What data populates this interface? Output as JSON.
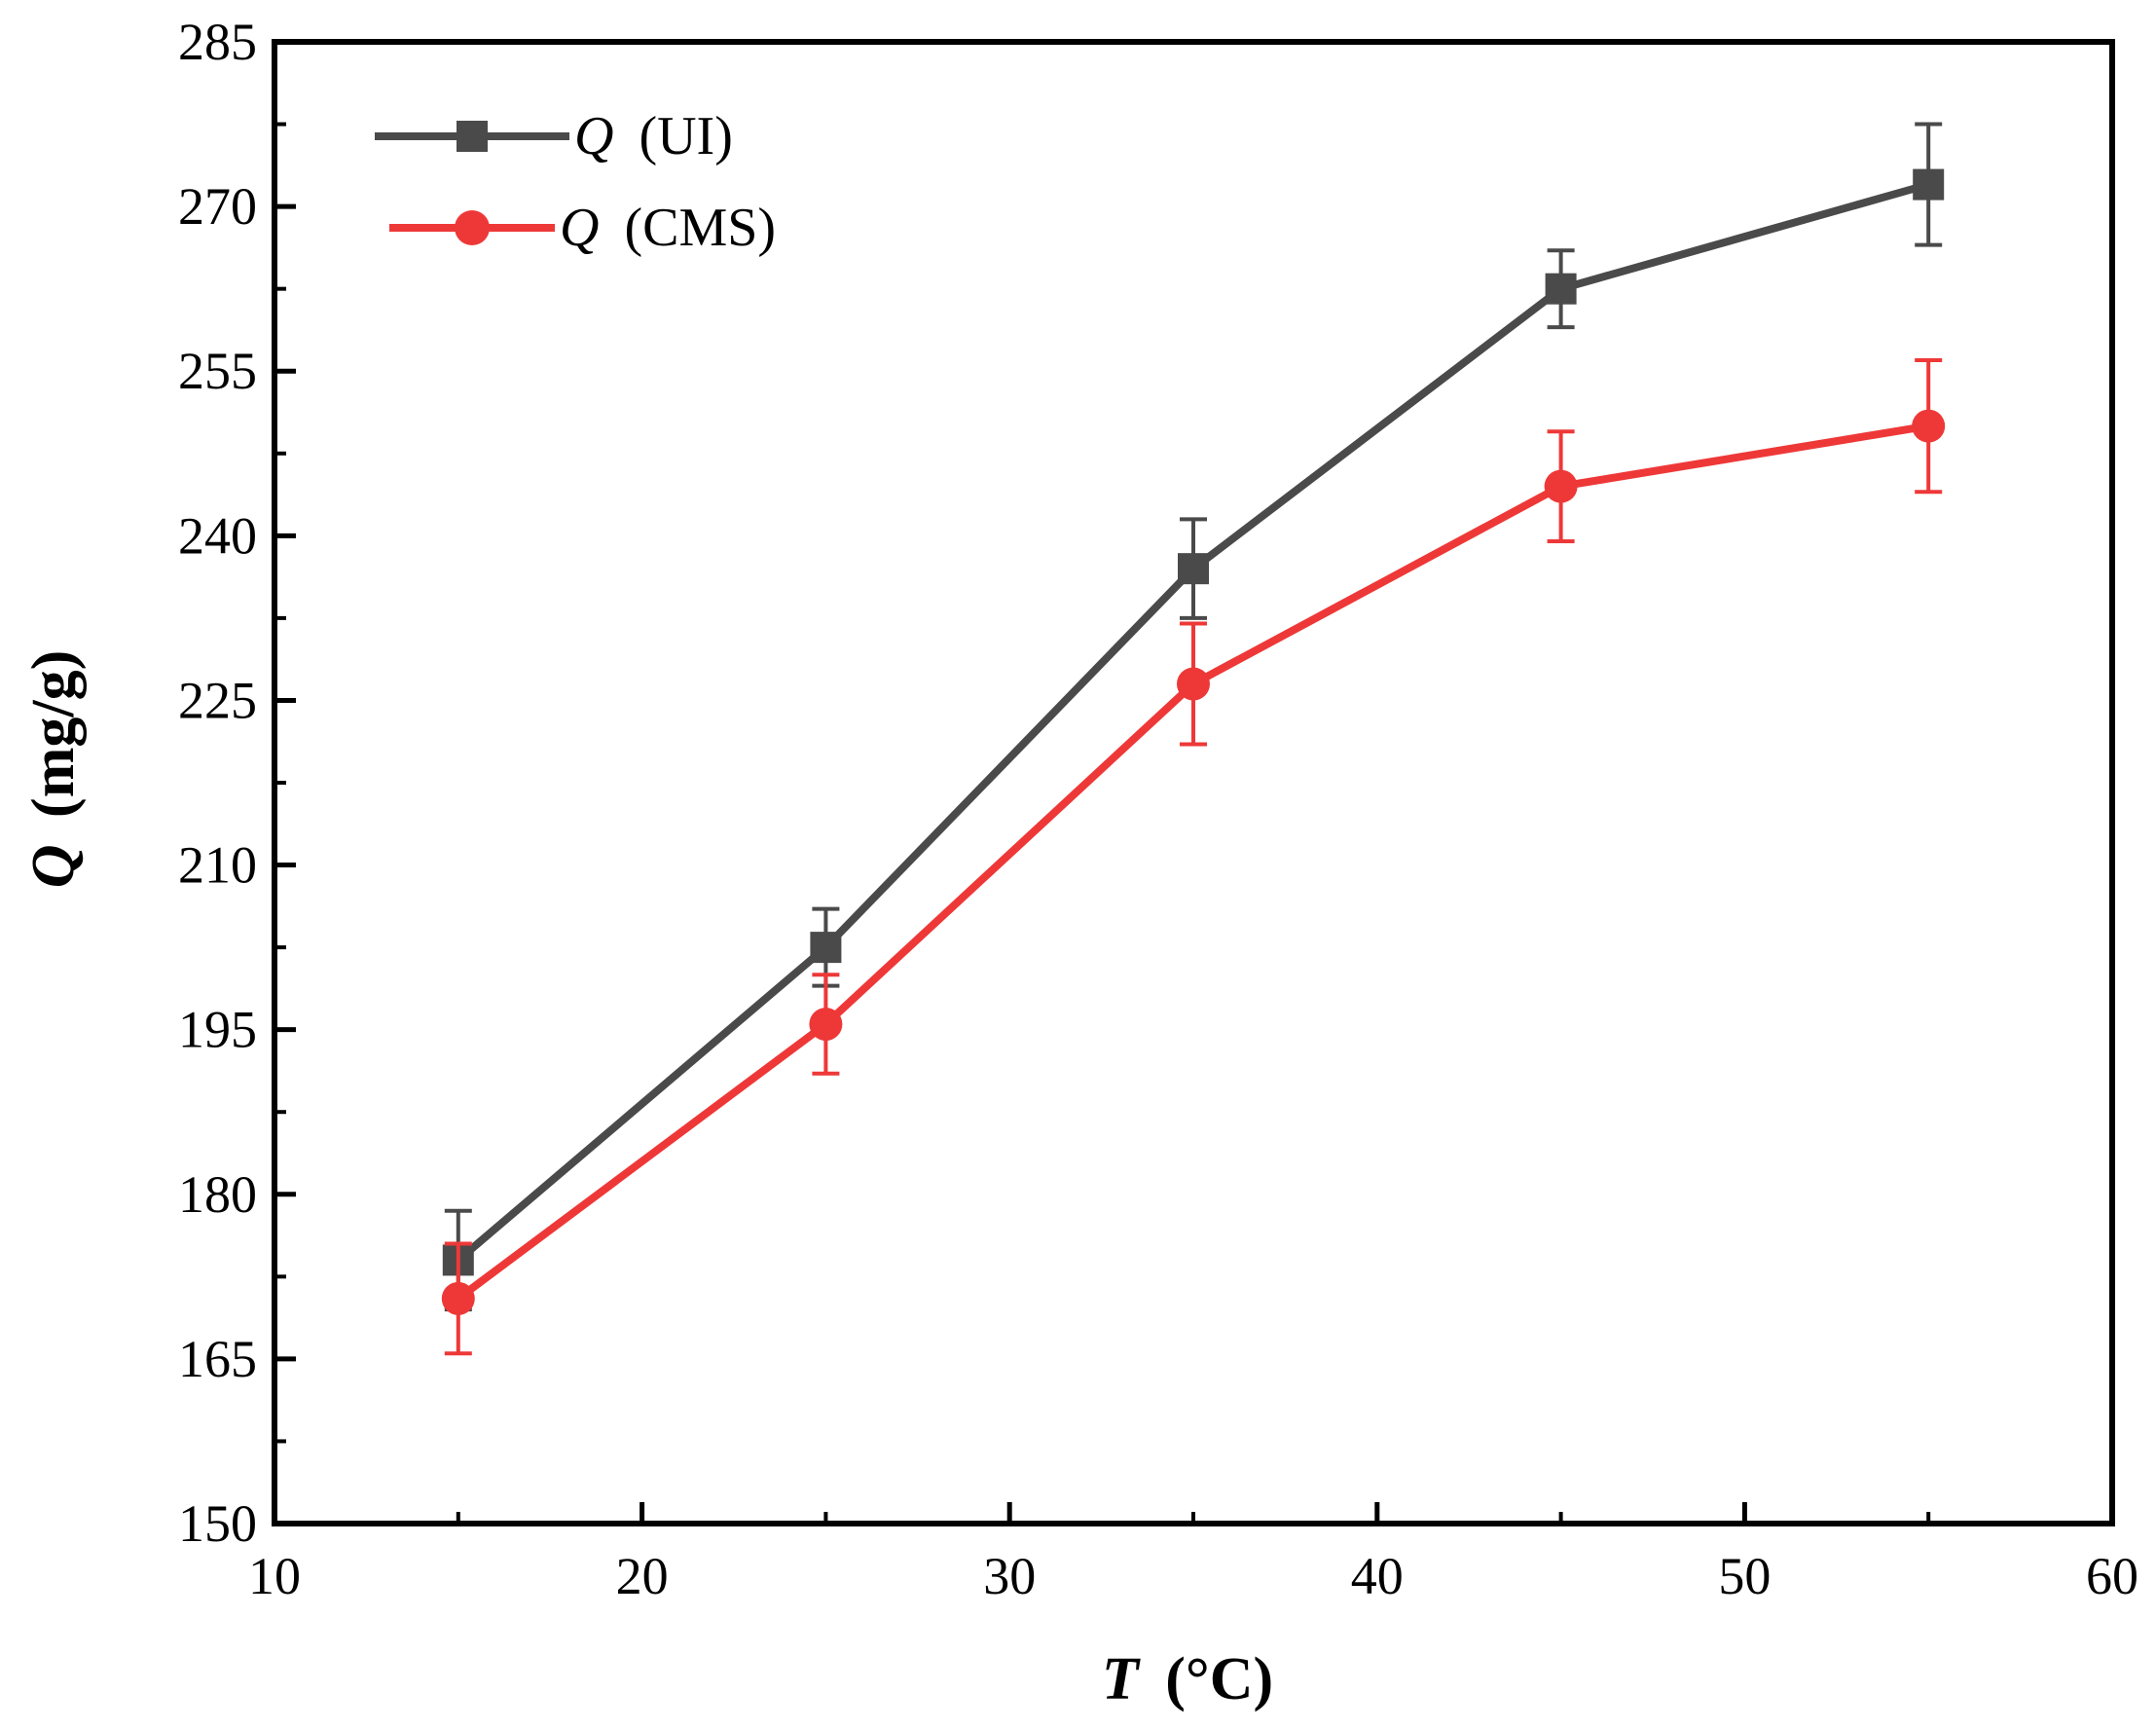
{
  "chart_data": {
    "type": "line",
    "title": "",
    "xlabel": {
      "symbol": "T",
      "unit": "(°C)"
    },
    "ylabel": {
      "symbol": "Q",
      "unit": "(mg/g)"
    },
    "xlim": [
      10,
      60
    ],
    "ylim": [
      150,
      285
    ],
    "xticks": [
      10,
      20,
      30,
      40,
      50,
      60
    ],
    "yticks": [
      150,
      165,
      180,
      195,
      210,
      225,
      240,
      255,
      270,
      285
    ],
    "x": [
      15,
      25,
      35,
      45,
      55
    ],
    "grid": false,
    "legend_position": "top-left",
    "series": [
      {
        "name": "Q (UI)",
        "symbol": "Q",
        "suffix": "(UI)",
        "color": "#4a4a4a",
        "marker": "square",
        "values": [
          174,
          202.5,
          237,
          262.5,
          272
        ],
        "errors": [
          4.5,
          3.5,
          4.5,
          3.5,
          5.5
        ]
      },
      {
        "name": "Q (CMS)",
        "symbol": "Q",
        "suffix": "(CMS)",
        "color": "#ee3838",
        "marker": "circle",
        "values": [
          170.5,
          195.5,
          226.5,
          244.5,
          250
        ],
        "errors": [
          5,
          4.5,
          5.5,
          5,
          6
        ]
      }
    ]
  }
}
